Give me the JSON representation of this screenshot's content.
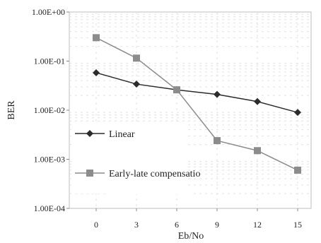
{
  "chart_data": {
    "type": "line",
    "xlabel": "Eb/No",
    "ylabel": "BER",
    "x": [
      0,
      3,
      6,
      9,
      12,
      15
    ],
    "x_ticks": [
      "0",
      "3",
      "6",
      "9",
      "12",
      "15"
    ],
    "xlim": [
      -2,
      16
    ],
    "y_scale": "log",
    "ylim": [
      0.0001,
      1
    ],
    "y_ticks": [
      "1.00E+00",
      "1.00E-01",
      "1.00E-02",
      "1.00E-03",
      "1.00E-04"
    ],
    "grid": true,
    "legend_position": "left",
    "series": [
      {
        "name": "Linear",
        "marker": "diamond",
        "color": "#2b2b2b",
        "values": [
          0.058,
          0.034,
          0.026,
          0.021,
          0.015,
          0.009
        ]
      },
      {
        "name": "Early-late compensatio",
        "marker": "square",
        "color": "#8c8c8c",
        "values": [
          0.3,
          0.115,
          0.026,
          0.0024,
          0.0015,
          0.0006
        ]
      }
    ]
  }
}
